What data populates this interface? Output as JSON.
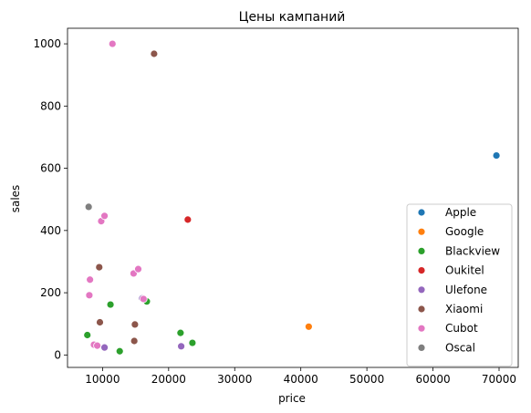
{
  "chart_data": {
    "type": "scatter",
    "title": "Цены кампаний",
    "xlabel": "price",
    "ylabel": "sales",
    "xlim": [
      4700,
      72900
    ],
    "ylim": [
      -40,
      1050
    ],
    "xticks": [
      10000,
      20000,
      30000,
      40000,
      50000,
      60000,
      70000
    ],
    "yticks": [
      0,
      200,
      400,
      600,
      800,
      1000
    ],
    "grid": false,
    "legend_position": "lower-right",
    "series": [
      {
        "name": "Apple",
        "color": "#1f77b4",
        "points": [
          [
            69600,
            641
          ]
        ]
      },
      {
        "name": "Google",
        "color": "#ff7f0e",
        "points": [
          [
            41200,
            91
          ]
        ]
      },
      {
        "name": "Blackview",
        "color": "#2ca02c",
        "points": [
          [
            7700,
            64
          ],
          [
            11200,
            162
          ],
          [
            12600,
            12
          ],
          [
            16700,
            172
          ],
          [
            21800,
            71
          ],
          [
            23600,
            39
          ]
        ]
      },
      {
        "name": "Oukitel",
        "color": "#d62728",
        "points": [
          [
            22900,
            435
          ]
        ]
      },
      {
        "name": "Ulefone",
        "color": "#9467bd",
        "points": [
          [
            10300,
            24
          ],
          [
            16000,
            182
          ],
          [
            21900,
            28
          ]
        ]
      },
      {
        "name": "Xiaomi",
        "color": "#8c564b",
        "points": [
          [
            9500,
            282
          ],
          [
            9600,
            105
          ],
          [
            14800,
            45
          ],
          [
            14900,
            98
          ],
          [
            17800,
            968
          ]
        ]
      },
      {
        "name": "Cubot",
        "color": "#e377c2",
        "points": [
          [
            8100,
            242
          ],
          [
            8000,
            192
          ],
          [
            8700,
            33
          ],
          [
            9200,
            30
          ],
          [
            9800,
            430
          ],
          [
            10300,
            447
          ],
          [
            11500,
            1000
          ],
          [
            14700,
            262
          ],
          [
            15400,
            276
          ],
          [
            16200,
            180
          ]
        ]
      },
      {
        "name": "Oscal",
        "color": "#7f7f7f",
        "points": [
          [
            7900,
            476
          ]
        ]
      }
    ]
  }
}
